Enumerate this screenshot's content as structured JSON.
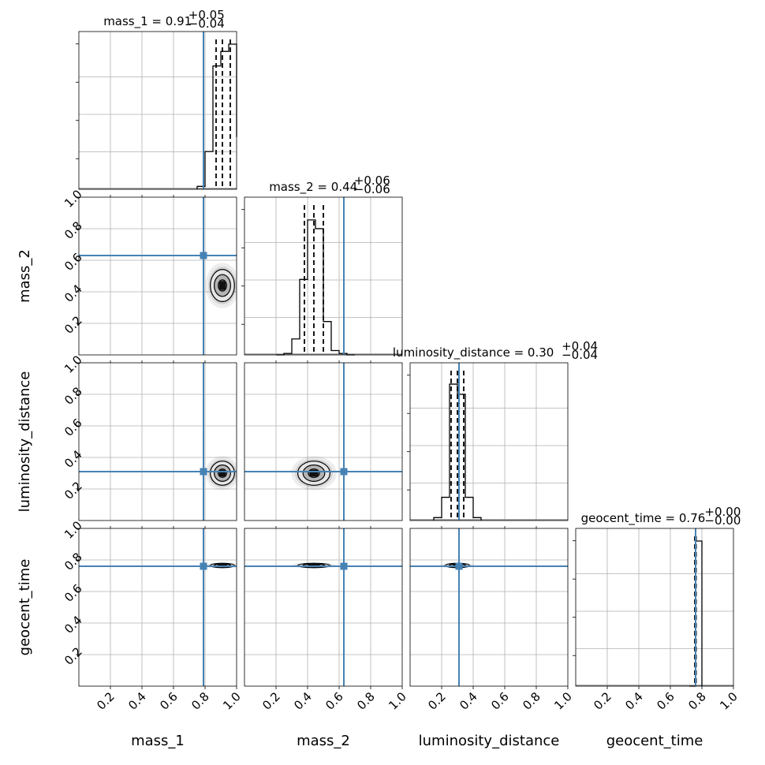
{
  "chart_data": {
    "type": "corner",
    "parameters": [
      "mass_1",
      "mass_2",
      "luminosity_distance",
      "geocent_time"
    ],
    "axis_range": [
      0,
      1
    ],
    "ticks": [
      0.2,
      0.4,
      0.6,
      0.8,
      1.0
    ],
    "tick_labels": [
      "0.2",
      "0.4",
      "0.6",
      "0.8",
      "1.0"
    ],
    "grid": true,
    "truth_color": "#4682b4",
    "truths": {
      "mass_1": 0.79,
      "mass_2": 0.63,
      "luminosity_distance": 0.31,
      "geocent_time": 0.76
    },
    "titles": [
      {
        "param": "mass_1",
        "label": "mass_1 = 0.91",
        "plus": "+0.05",
        "minus": "−0.04"
      },
      {
        "param": "mass_2",
        "label": "mass_2 = 0.44",
        "plus": "+0.06",
        "minus": "−0.06"
      },
      {
        "param": "luminosity_distance",
        "label": "luminosity_distance = 0.30",
        "plus": "+0.04",
        "minus": "−0.04"
      },
      {
        "param": "geocent_time",
        "label": "geocent_time = 0.76",
        "plus": "+0.00",
        "minus": "−0.00"
      }
    ],
    "quantiles": {
      "mass_1": [
        0.87,
        0.91,
        0.96
      ],
      "mass_2": [
        0.38,
        0.44,
        0.5
      ],
      "luminosity_distance": [
        0.26,
        0.3,
        0.34
      ],
      "geocent_time": [
        0.755,
        0.76,
        0.763
      ]
    },
    "histograms": {
      "mass_1": {
        "edges": [
          0.75,
          0.8,
          0.85,
          0.9,
          0.95,
          1.0
        ],
        "counts": [
          0.02,
          0.26,
          0.85,
          0.95,
          1.0,
          0.36
        ]
      },
      "mass_2": {
        "edges": [
          0.2,
          0.25,
          0.3,
          0.35,
          0.4,
          0.45,
          0.5,
          0.55,
          0.6,
          0.65,
          0.7
        ],
        "counts": [
          0.0,
          0.01,
          0.11,
          0.52,
          0.93,
          0.87,
          0.23,
          0.03,
          0.01,
          0.0
        ]
      },
      "luminosity_distance": {
        "edges": [
          0.15,
          0.2,
          0.25,
          0.3,
          0.35,
          0.4,
          0.45
        ],
        "counts": [
          0.02,
          0.16,
          0.94,
          0.87,
          0.16,
          0.02
        ]
      },
      "geocent_time": {
        "edges": [
          0.72,
          0.76,
          0.8
        ],
        "counts": [
          0.0,
          1.0
        ]
      }
    },
    "posterior_2d": [
      {
        "x": "mass_1",
        "y": "mass_2",
        "cx": 0.91,
        "cy": 0.44,
        "sx": 0.045,
        "sy": 0.06
      },
      {
        "x": "mass_1",
        "y": "luminosity_distance",
        "cx": 0.91,
        "cy": 0.3,
        "sx": 0.045,
        "sy": 0.045
      },
      {
        "x": "mass_2",
        "y": "luminosity_distance",
        "cx": 0.44,
        "cy": 0.3,
        "sx": 0.06,
        "sy": 0.045
      },
      {
        "x": "mass_1",
        "y": "geocent_time",
        "cx": 0.91,
        "cy": 0.765,
        "sx": 0.045,
        "sy": 0.008
      },
      {
        "x": "mass_2",
        "y": "geocent_time",
        "cx": 0.44,
        "cy": 0.765,
        "sx": 0.06,
        "sy": 0.008
      },
      {
        "x": "luminosity_distance",
        "y": "geocent_time",
        "cx": 0.3,
        "cy": 0.765,
        "sx": 0.045,
        "sy": 0.008
      }
    ]
  }
}
